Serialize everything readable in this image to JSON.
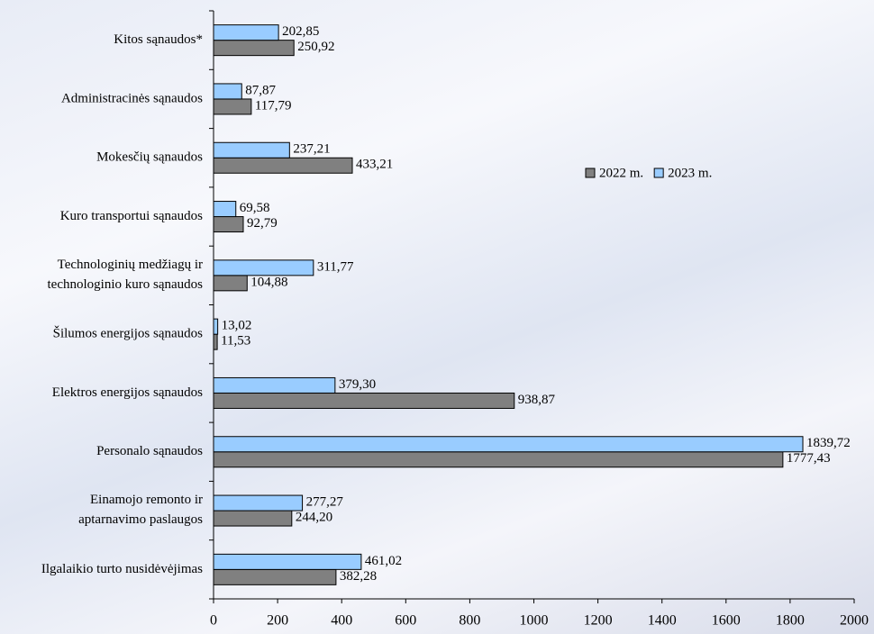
{
  "chart_data": {
    "type": "bar",
    "orientation": "horizontal",
    "categories": [
      "Kitos sąnaudos*",
      "Administracinės sąnaudos",
      "Mokesčių sąnaudos",
      "Kuro transportui sąnaudos",
      "Technologinių medžiagų ir technologinio kuro sąnaudos",
      "Šilumos energijos sąnaudos",
      "Elektros energijos sąnaudos",
      "Personalo sąnaudos",
      "Einamojo remonto ir aptarnavimo paslaugos",
      "Ilgalaikio turto nusidėvėjimas"
    ],
    "series": [
      {
        "name": "2022 m.",
        "color": "#808080",
        "values": [
          250.92,
          117.79,
          433.21,
          92.79,
          104.88,
          11.53,
          938.87,
          1777.43,
          244.2,
          382.28
        ],
        "value_labels": [
          "250,92",
          "117,79",
          "433,21",
          "92,79",
          "104,88",
          "11,53",
          "938,87",
          "1777,43",
          "244,20",
          "382,28"
        ]
      },
      {
        "name": "2023 m.",
        "color": "#99ccff",
        "values": [
          202.85,
          87.87,
          237.21,
          69.58,
          311.77,
          13.02,
          379.3,
          1839.72,
          277.27,
          461.02
        ],
        "value_labels": [
          "202,85",
          "87,87",
          "237,21",
          "69,58",
          "311,77",
          "13,02",
          "379,30",
          "1839,72",
          "277,27",
          "461,02"
        ]
      }
    ],
    "xlim": [
      0,
      2000
    ],
    "xticks": [
      0,
      200,
      400,
      600,
      800,
      1000,
      1200,
      1400,
      1600,
      1800,
      2000
    ],
    "grid": false,
    "legend": "right"
  }
}
